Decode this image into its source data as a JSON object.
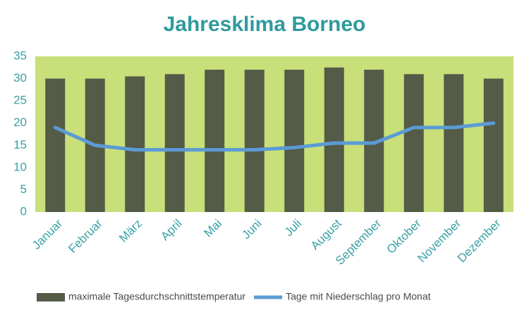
{
  "chart_data": {
    "type": "bar",
    "title": "Jahresklima  Borneo",
    "categories": [
      "Januar",
      "Februar",
      "März",
      "April",
      "Mai",
      "Juni",
      "Juli",
      "August",
      "September",
      "Oktober",
      "November",
      "Dezember"
    ],
    "series": [
      {
        "name": "maximale Tagesdurchschnittstemperatur",
        "type": "bar",
        "color": "#545b47",
        "values": [
          30,
          30,
          30.5,
          31,
          32,
          32,
          32,
          32.5,
          32,
          31,
          31,
          30
        ]
      },
      {
        "name": "Tage mit Niederschlag pro Monat",
        "type": "line",
        "color": "#5b9bd5",
        "values": [
          19,
          15,
          14,
          14,
          14,
          14,
          14.5,
          15.5,
          15.5,
          19,
          19,
          20
        ]
      }
    ],
    "ylim": [
      0,
      35
    ],
    "yticks": [
      0,
      5,
      10,
      15,
      20,
      25,
      30,
      35
    ],
    "plot_background": "#c8df7a",
    "legend": "bottom"
  }
}
